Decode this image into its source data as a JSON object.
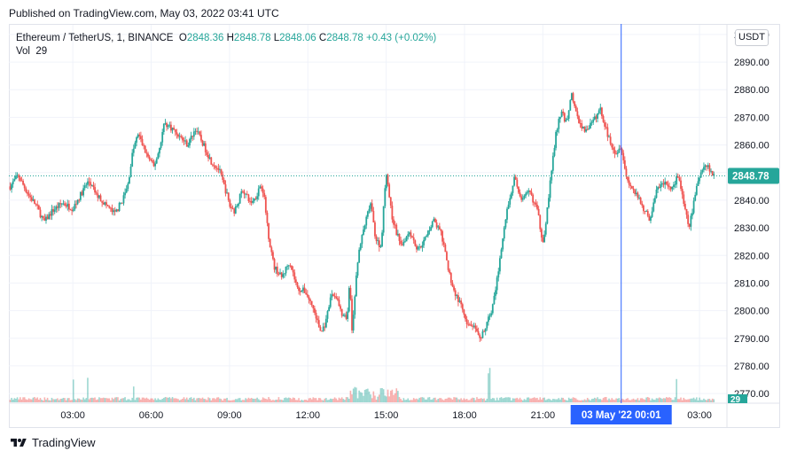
{
  "published_text": "Published on TradingView.com, May 03, 2022 03:41 UTC",
  "legend": {
    "symbol": "Ethereum / TetherUS, 1, BINANCE",
    "open_label": "O",
    "open": "2848.36",
    "high_label": "H",
    "high": "2848.78",
    "low_label": "L",
    "low": "2848.06",
    "close_label": "C",
    "close": "2848.78",
    "change": "+0.43 (+0.02%)",
    "vol_label": "Vol",
    "vol": "29"
  },
  "currency": "USDT",
  "footer_brand": "TradingView",
  "colors": {
    "up": "#26a69a",
    "down": "#ef5350",
    "crosshair": "#2962ff",
    "grid": "#f0f3fa",
    "price_badge": "#26a69a"
  },
  "chart_data": {
    "type": "candlestick",
    "symbol": "Ethereum / TetherUS",
    "interval": "1",
    "y_ticks": [
      2770,
      2780,
      2790,
      2800,
      2810,
      2820,
      2830,
      2840,
      2850,
      2860,
      2870,
      2880,
      2890,
      2900
    ],
    "y_tick_labels": [
      "2770.00",
      "2780.00",
      "2790.00",
      "2800.00",
      "2810.00",
      "2820.00",
      "2830.00",
      "2840.00",
      "2850.00",
      "2860.00",
      "2870.00",
      "2880.00",
      "2890.00",
      "2900.00"
    ],
    "ylim": [
      2766.5,
      2903.5
    ],
    "x_ticks": [
      {
        "label": "03:00",
        "hour": 3
      },
      {
        "label": "06:00",
        "hour": 6
      },
      {
        "label": "09:00",
        "hour": 9
      },
      {
        "label": "12:00",
        "hour": 12
      },
      {
        "label": "15:00",
        "hour": 15
      },
      {
        "label": "18:00",
        "hour": 18
      },
      {
        "label": "21:00",
        "hour": 21
      },
      {
        "label": "03:00",
        "hour": 27
      }
    ],
    "x_range_hours": [
      0.55,
      28.05
    ],
    "crosshair": {
      "hour": 24.0,
      "label_date": "03 May '22",
      "label_time": "00:01"
    },
    "last_price": 2848.78,
    "last_volume": "29",
    "price_path": [
      [
        0.6,
        2845
      ],
      [
        0.9,
        2849
      ],
      [
        1.3,
        2842
      ],
      [
        1.6,
        2838
      ],
      [
        1.9,
        2832
      ],
      [
        2.2,
        2836
      ],
      [
        2.6,
        2839
      ],
      [
        3.0,
        2837
      ],
      [
        3.3,
        2842
      ],
      [
        3.6,
        2847
      ],
      [
        3.9,
        2842
      ],
      [
        4.2,
        2839
      ],
      [
        4.6,
        2835
      ],
      [
        4.9,
        2840
      ],
      [
        5.1,
        2845
      ],
      [
        5.3,
        2858
      ],
      [
        5.5,
        2864
      ],
      [
        5.8,
        2857
      ],
      [
        6.1,
        2852
      ],
      [
        6.3,
        2858
      ],
      [
        6.5,
        2868
      ],
      [
        6.8,
        2866
      ],
      [
        7.1,
        2863
      ],
      [
        7.4,
        2860
      ],
      [
        7.7,
        2866
      ],
      [
        8.0,
        2860
      ],
      [
        8.3,
        2854
      ],
      [
        8.6,
        2851
      ],
      [
        8.9,
        2842
      ],
      [
        9.0,
        2838
      ],
      [
        9.2,
        2836
      ],
      [
        9.5,
        2844
      ],
      [
        9.8,
        2839
      ],
      [
        10.0,
        2841
      ],
      [
        10.2,
        2846
      ],
      [
        10.3,
        2843
      ],
      [
        10.5,
        2827
      ],
      [
        10.7,
        2816
      ],
      [
        11.0,
        2812
      ],
      [
        11.3,
        2818
      ],
      [
        11.6,
        2808
      ],
      [
        11.9,
        2807
      ],
      [
        12.2,
        2801
      ],
      [
        12.5,
        2792
      ],
      [
        12.7,
        2796
      ],
      [
        12.9,
        2806
      ],
      [
        13.1,
        2805
      ],
      [
        13.3,
        2798
      ],
      [
        13.5,
        2797
      ],
      [
        13.6,
        2810
      ],
      [
        13.7,
        2792
      ],
      [
        13.9,
        2818
      ],
      [
        14.1,
        2828
      ],
      [
        14.4,
        2839
      ],
      [
        14.6,
        2826
      ],
      [
        14.8,
        2823
      ],
      [
        15.0,
        2851
      ],
      [
        15.2,
        2835
      ],
      [
        15.4,
        2828
      ],
      [
        15.6,
        2824
      ],
      [
        15.9,
        2829
      ],
      [
        16.2,
        2822
      ],
      [
        16.5,
        2826
      ],
      [
        16.8,
        2833
      ],
      [
        17.1,
        2828
      ],
      [
        17.4,
        2814
      ],
      [
        17.6,
        2807
      ],
      [
        17.9,
        2801
      ],
      [
        18.1,
        2794
      ],
      [
        18.3,
        2795
      ],
      [
        18.6,
        2789
      ],
      [
        18.9,
        2797
      ],
      [
        19.1,
        2802
      ],
      [
        19.3,
        2815
      ],
      [
        19.6,
        2835
      ],
      [
        19.9,
        2848
      ],
      [
        20.2,
        2840
      ],
      [
        20.5,
        2843
      ],
      [
        20.8,
        2836
      ],
      [
        20.9,
        2830
      ],
      [
        21.0,
        2825
      ],
      [
        21.1,
        2831
      ],
      [
        21.3,
        2848
      ],
      [
        21.5,
        2864
      ],
      [
        21.7,
        2872
      ],
      [
        21.9,
        2868
      ],
      [
        22.1,
        2879
      ],
      [
        22.3,
        2870
      ],
      [
        22.6,
        2865
      ],
      [
        22.9,
        2868
      ],
      [
        23.2,
        2873
      ],
      [
        23.5,
        2863
      ],
      [
        23.8,
        2857
      ],
      [
        24.0,
        2860
      ],
      [
        24.2,
        2848
      ],
      [
        24.5,
        2843
      ],
      [
        24.8,
        2838
      ],
      [
        25.1,
        2833
      ],
      [
        25.4,
        2845
      ],
      [
        25.7,
        2846
      ],
      [
        25.9,
        2844
      ],
      [
        26.2,
        2849
      ],
      [
        26.4,
        2838
      ],
      [
        26.6,
        2830
      ],
      [
        26.9,
        2845
      ],
      [
        27.1,
        2852
      ],
      [
        27.3,
        2853
      ],
      [
        27.5,
        2849
      ],
      [
        27.6,
        2848.78
      ]
    ]
  }
}
